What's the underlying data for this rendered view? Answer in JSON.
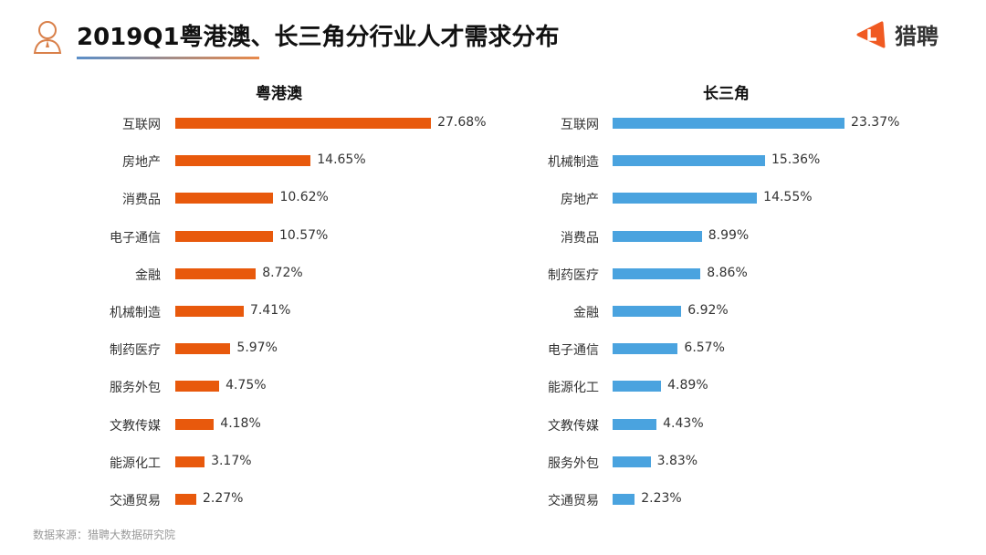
{
  "header": {
    "title": "2019Q1粤港澳、长三角分行业人才需求分布",
    "logo_text": "猎聘"
  },
  "source": "数据来源：猎聘大数据研究院",
  "chart_data": [
    {
      "type": "bar",
      "orientation": "horizontal",
      "title": "粤港澳",
      "color": "#e8590c",
      "unit": "%",
      "categories": [
        "互联网",
        "房地产",
        "消费品",
        "电子通信",
        "金融",
        "机械制造",
        "制药医疗",
        "服务外包",
        "文教传媒",
        "能源化工",
        "交通贸易"
      ],
      "values": [
        27.68,
        14.65,
        10.62,
        10.57,
        8.72,
        7.41,
        5.97,
        4.75,
        4.18,
        3.17,
        2.27
      ],
      "labels": [
        "27.68%",
        "14.65%",
        "10.62%",
        "10.57%",
        "8.72%",
        "7.41%",
        "5.97%",
        "4.75%",
        "4.18%",
        "3.17%",
        "2.27%"
      ]
    },
    {
      "type": "bar",
      "orientation": "horizontal",
      "title": "长三角",
      "color": "#4aa3df",
      "unit": "%",
      "categories": [
        "互联网",
        "机械制造",
        "房地产",
        "消费品",
        "制药医疗",
        "金融",
        "电子通信",
        "能源化工",
        "文教传媒",
        "服务外包",
        "交通贸易"
      ],
      "values": [
        23.37,
        15.36,
        14.55,
        8.99,
        8.86,
        6.92,
        6.57,
        4.89,
        4.43,
        3.83,
        2.23
      ],
      "labels": [
        "23.37%",
        "15.36%",
        "14.55%",
        "8.99%",
        "8.86%",
        "6.92%",
        "6.57%",
        "4.89%",
        "4.43%",
        "3.83%",
        "2.23%"
      ]
    }
  ]
}
